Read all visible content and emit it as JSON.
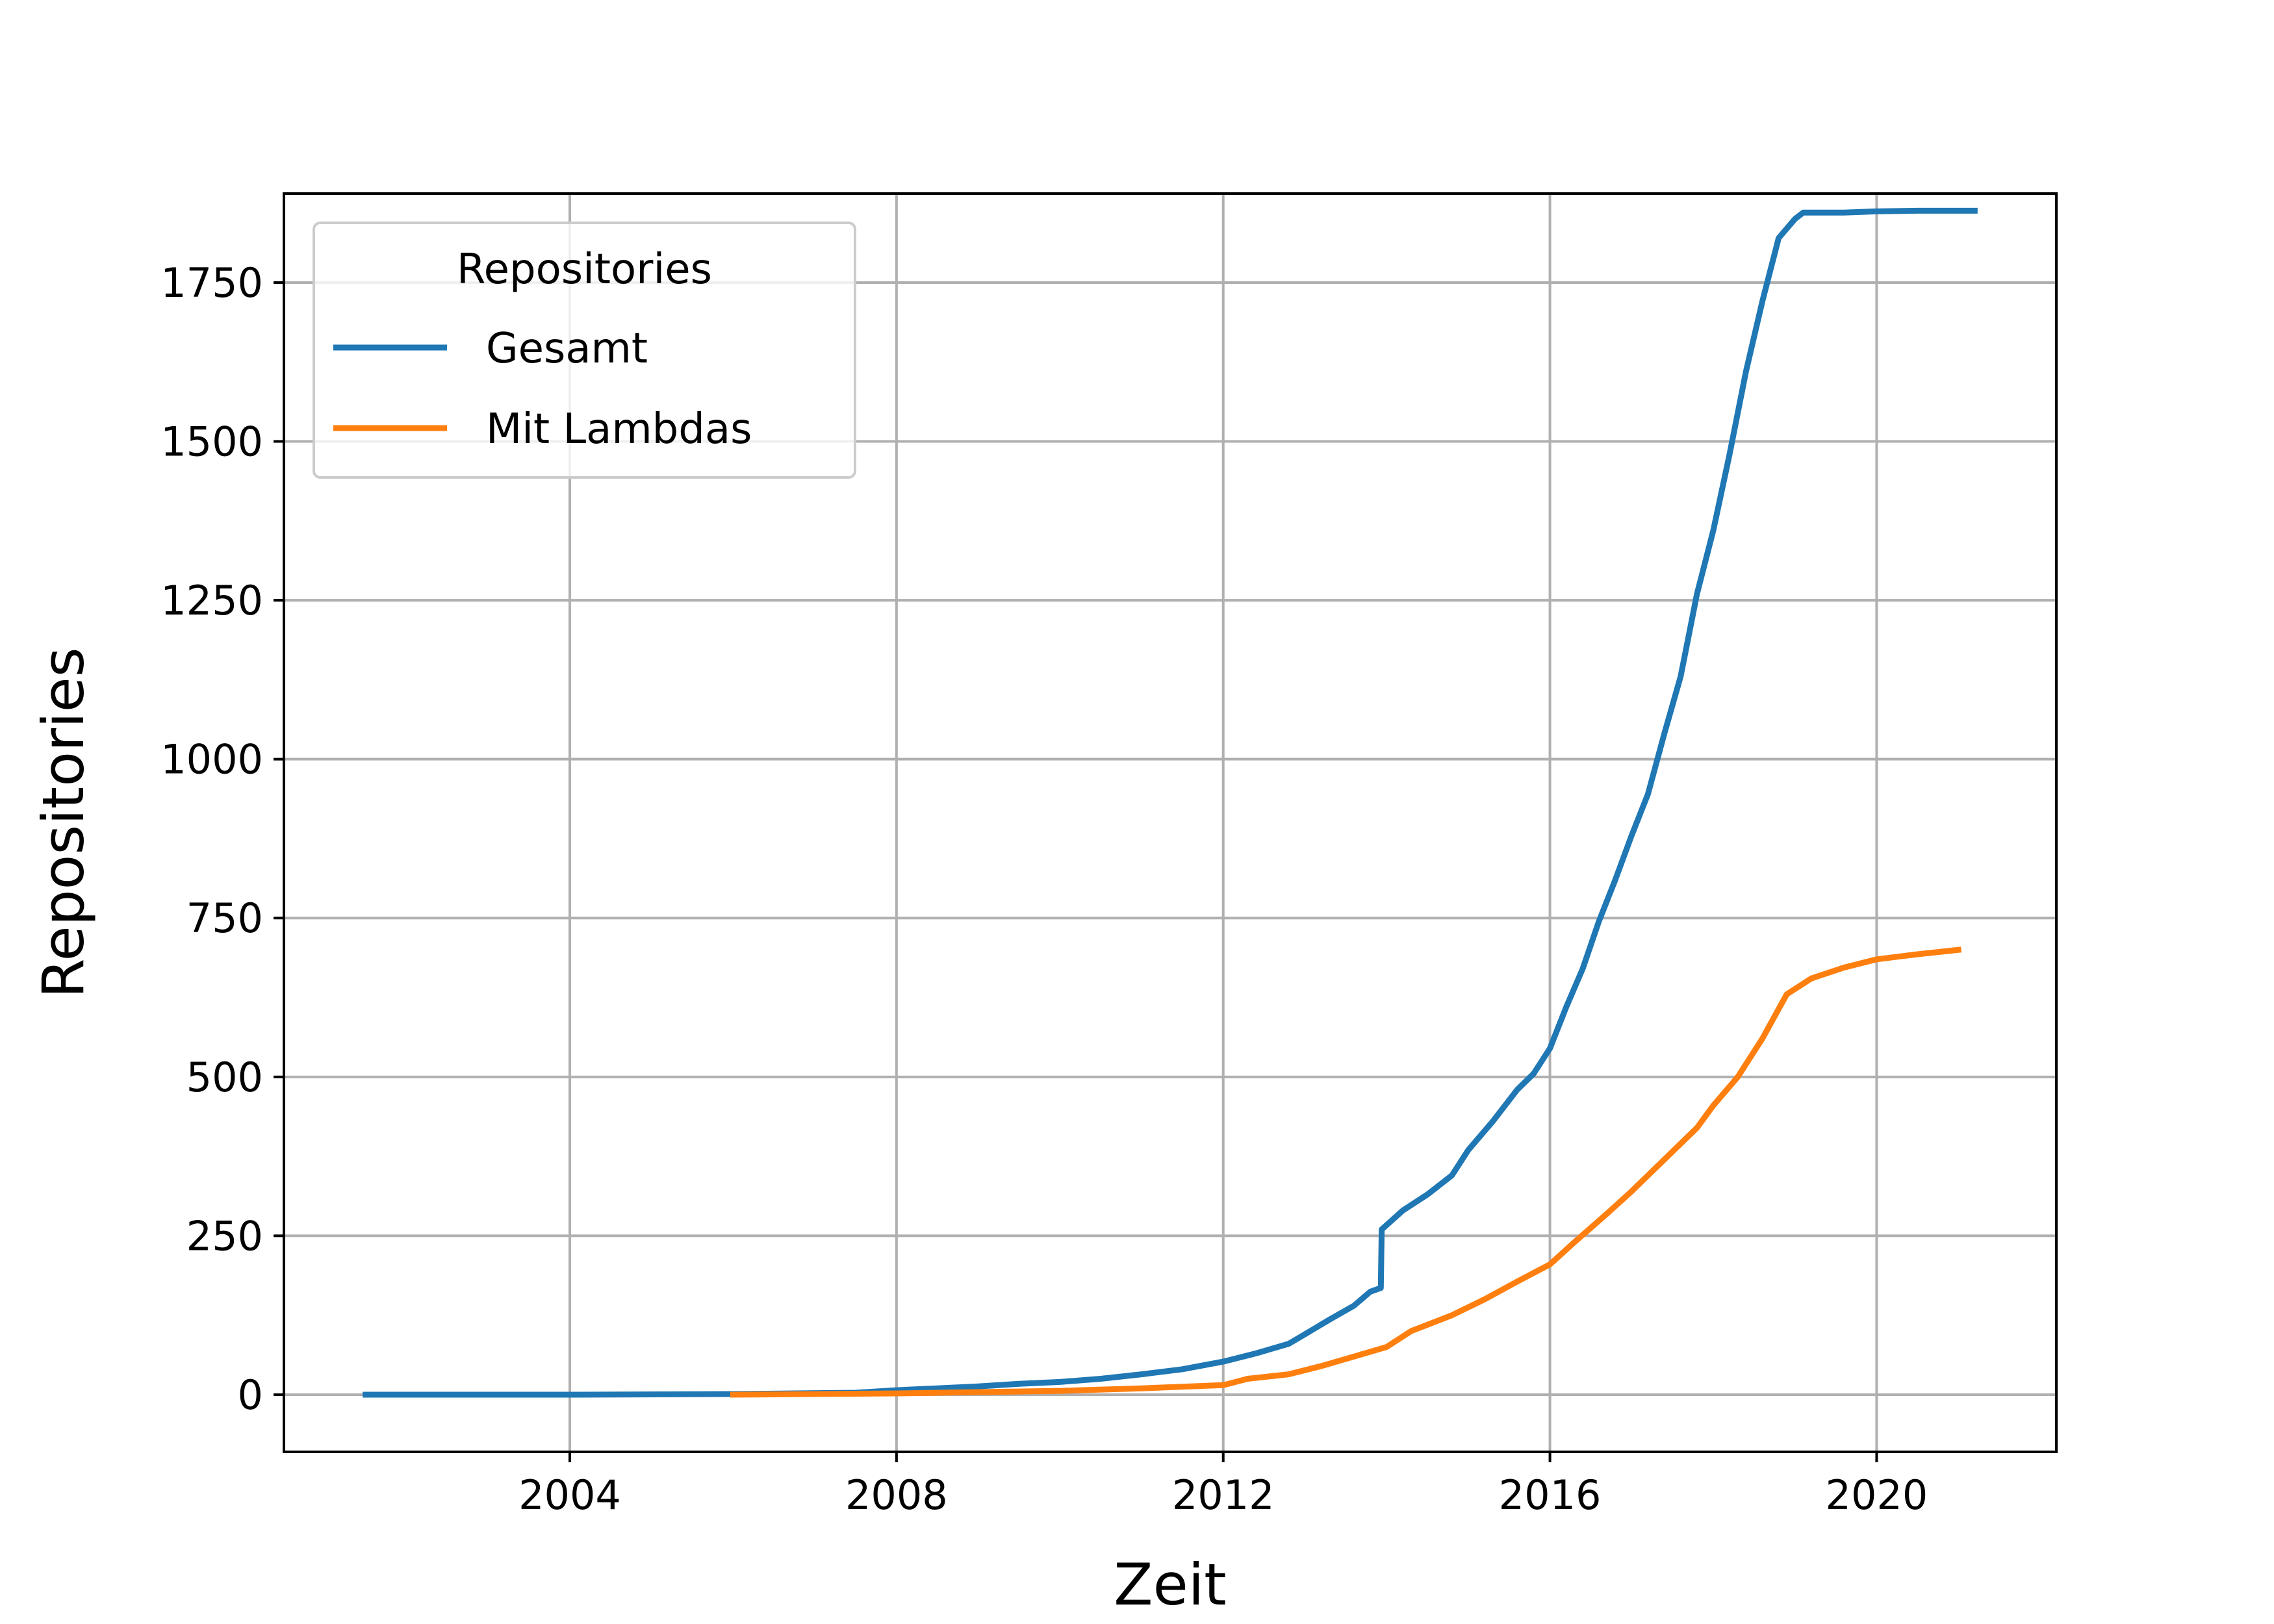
{
  "chart_data": {
    "type": "line",
    "title": "",
    "xlabel": "Zeit",
    "ylabel": "Repositories",
    "xlim": [
      2000.5,
      2022.2
    ],
    "ylim": [
      -90,
      1890
    ],
    "x_ticks": [
      2004,
      2008,
      2012,
      2016,
      2020
    ],
    "x_tick_labels": [
      "2004",
      "2008",
      "2012",
      "2016",
      "2020"
    ],
    "y_ticks": [
      0,
      250,
      500,
      750,
      1000,
      1250,
      1500,
      1750
    ],
    "y_tick_labels": [
      "0",
      "250",
      "500",
      "750",
      "1000",
      "1250",
      "1500",
      "1750"
    ],
    "grid": true,
    "legend": {
      "title": "Repositories",
      "placement": "top-left"
    },
    "series": [
      {
        "name": "Gesamt",
        "color": "#1f77b4",
        "points": [
          [
            2001.5,
            0
          ],
          [
            2004.0,
            0
          ],
          [
            2006.0,
            1
          ],
          [
            2007.5,
            3
          ],
          [
            2008.0,
            7
          ],
          [
            2008.5,
            10
          ],
          [
            2009.0,
            13
          ],
          [
            2009.5,
            17
          ],
          [
            2010.0,
            20
          ],
          [
            2010.5,
            25
          ],
          [
            2011.0,
            32
          ],
          [
            2011.5,
            40
          ],
          [
            2012.0,
            52
          ],
          [
            2012.4,
            65
          ],
          [
            2012.8,
            80
          ],
          [
            2013.0,
            95
          ],
          [
            2013.3,
            118
          ],
          [
            2013.6,
            140
          ],
          [
            2013.8,
            162
          ],
          [
            2013.93,
            168
          ],
          [
            2013.94,
            260
          ],
          [
            2014.2,
            290
          ],
          [
            2014.5,
            315
          ],
          [
            2014.8,
            345
          ],
          [
            2015.0,
            385
          ],
          [
            2015.3,
            430
          ],
          [
            2015.6,
            480
          ],
          [
            2015.8,
            505
          ],
          [
            2016.0,
            545
          ],
          [
            2016.2,
            610
          ],
          [
            2016.4,
            670
          ],
          [
            2016.6,
            745
          ],
          [
            2016.8,
            810
          ],
          [
            2017.0,
            880
          ],
          [
            2017.2,
            945
          ],
          [
            2017.4,
            1040
          ],
          [
            2017.6,
            1130
          ],
          [
            2017.8,
            1260
          ],
          [
            2018.0,
            1360
          ],
          [
            2018.2,
            1480
          ],
          [
            2018.4,
            1610
          ],
          [
            2018.6,
            1720
          ],
          [
            2018.8,
            1820
          ],
          [
            2019.0,
            1850
          ],
          [
            2019.1,
            1860
          ],
          [
            2019.6,
            1860
          ],
          [
            2020.0,
            1862
          ],
          [
            2020.5,
            1863
          ],
          [
            2021.2,
            1863
          ]
        ]
      },
      {
        "name": "Mit Lambdas",
        "color": "#ff7f0e",
        "points": [
          [
            2006.0,
            0
          ],
          [
            2007.0,
            1
          ],
          [
            2008.0,
            2
          ],
          [
            2009.0,
            4
          ],
          [
            2010.0,
            6
          ],
          [
            2011.0,
            10
          ],
          [
            2012.0,
            15
          ],
          [
            2012.3,
            25
          ],
          [
            2012.8,
            32
          ],
          [
            2013.2,
            45
          ],
          [
            2013.6,
            60
          ],
          [
            2014.0,
            75
          ],
          [
            2014.3,
            100
          ],
          [
            2014.8,
            125
          ],
          [
            2015.2,
            150
          ],
          [
            2015.6,
            178
          ],
          [
            2016.0,
            205
          ],
          [
            2016.3,
            240
          ],
          [
            2016.7,
            285
          ],
          [
            2017.0,
            320
          ],
          [
            2017.4,
            370
          ],
          [
            2017.8,
            420
          ],
          [
            2018.0,
            455
          ],
          [
            2018.3,
            500
          ],
          [
            2018.6,
            560
          ],
          [
            2018.9,
            630
          ],
          [
            2019.2,
            655
          ],
          [
            2019.6,
            672
          ],
          [
            2020.0,
            685
          ],
          [
            2020.5,
            693
          ],
          [
            2021.0,
            700
          ]
        ]
      }
    ]
  }
}
